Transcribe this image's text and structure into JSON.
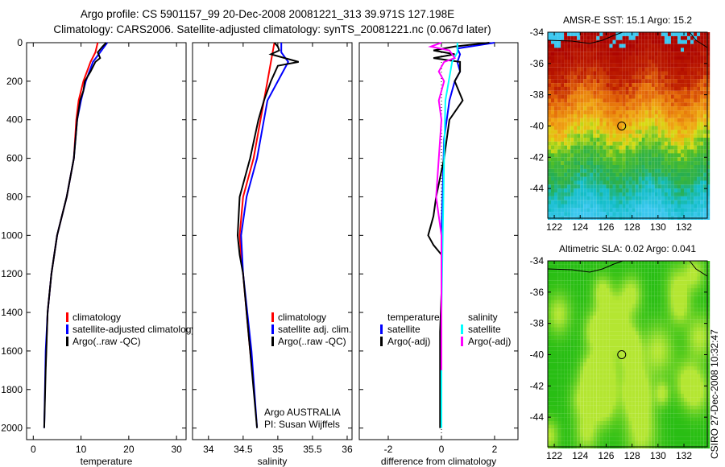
{
  "title": {
    "line1": "Argo profile: CS 5901157_99 20-Dec-2008 20081221_313 39.971S 127.198E",
    "line2": "Climatology: CARS2006. Satellite-adjusted climatology: synTS_20081221.nc (0.067d later)"
  },
  "side_label": "CSIRO 27-Dec-2008 10:32:47",
  "colors": {
    "clim": "#ff0000",
    "sat": "#0000ff",
    "argo": "#000000",
    "sal_sat": "#00ffff",
    "sal_argo": "#ff00ff"
  },
  "chart_data": [
    {
      "type": "line",
      "xlabel": "temperature",
      "ylabel": "",
      "xlim": [
        -1.4,
        32
      ],
      "ylim": [
        0,
        2060
      ],
      "y_reversed": true,
      "xticks": [
        0,
        10,
        20,
        30
      ],
      "yticks": [
        0,
        200,
        400,
        600,
        800,
        1000,
        1200,
        1400,
        1600,
        1800,
        2000
      ],
      "legend": {
        "placement": "center-right",
        "entries": [
          "climatology",
          "satellite-adjusted climatology",
          "Argo(..raw -QC)"
        ]
      },
      "series": [
        {
          "name": "climatology",
          "color": "clim",
          "depth": [
            0,
            50,
            100,
            200,
            300,
            400,
            600,
            800,
            1000,
            1200,
            1400,
            1600,
            1680
          ],
          "values": [
            13.5,
            13,
            12,
            10.5,
            9.5,
            9,
            8.5,
            7,
            5,
            3.8,
            3,
            2.7,
            2.6
          ]
        },
        {
          "name": "satellite-adjusted climatology",
          "color": "sat",
          "depth": [
            0,
            50,
            100,
            200,
            300,
            400,
            600,
            800,
            1000,
            1200,
            1400,
            1600,
            2000
          ],
          "values": [
            15.5,
            14,
            12.5,
            11,
            10,
            9.2,
            8.5,
            7,
            5,
            3.8,
            3,
            2.6,
            2.3
          ]
        },
        {
          "name": "Argo(..raw -QC)",
          "color": "argo",
          "depth": [
            0,
            20,
            50,
            80,
            100,
            150,
            200,
            250,
            300,
            400,
            600,
            800,
            1000,
            1200,
            1400,
            1700,
            2000
          ],
          "values": [
            15.3,
            14.5,
            13.5,
            14,
            13,
            12,
            10.8,
            10.5,
            9.8,
            9.2,
            8.5,
            7,
            5,
            3.8,
            3,
            2.6,
            2.3
          ]
        }
      ]
    },
    {
      "type": "line",
      "xlabel": "salinity",
      "xlim": [
        33.77,
        36.07
      ],
      "ylim": [
        0,
        2060
      ],
      "y_reversed": true,
      "xticks": [
        34,
        34.5,
        35,
        35.5,
        36
      ],
      "yticks": [
        0,
        200,
        400,
        600,
        800,
        1000,
        1200,
        1400,
        1600,
        1800,
        2000
      ],
      "legend": {
        "placement": "center-right",
        "entries": [
          "climatology",
          "satellite adj. clim.",
          "Argo(..raw -QC)"
        ]
      },
      "annotation": [
        "Argo AUSTRALIA",
        "PI: Susan Wijffels"
      ],
      "series": [
        {
          "name": "climatology",
          "color": "clim",
          "depth": [
            0,
            100,
            200,
            300,
            400,
            600,
            800,
            1000,
            1100,
            1200,
            1400,
            1600,
            1700
          ],
          "values": [
            34.95,
            34.9,
            34.85,
            34.8,
            34.75,
            34.65,
            34.5,
            34.45,
            34.47,
            34.5,
            34.55,
            34.6,
            34.63
          ]
        },
        {
          "name": "satellite adj. clim.",
          "color": "sat",
          "depth": [
            0,
            50,
            100,
            200,
            300,
            400,
            600,
            800,
            1000,
            1200,
            1400,
            1600,
            2000
          ],
          "values": [
            35.05,
            35.05,
            35.15,
            35.0,
            34.85,
            34.8,
            34.7,
            34.55,
            34.47,
            34.5,
            34.56,
            34.62,
            34.7
          ]
        },
        {
          "name": "Argo(..raw -QC)",
          "color": "argo",
          "depth": [
            0,
            20,
            40,
            60,
            80,
            100,
            120,
            200,
            300,
            400,
            600,
            800,
            1000,
            1100,
            1200,
            1400,
            1600,
            2000
          ],
          "values": [
            34.95,
            35.0,
            35.02,
            34.9,
            35.1,
            35.3,
            35.0,
            34.9,
            34.8,
            34.72,
            34.6,
            34.45,
            34.42,
            34.45,
            34.5,
            34.55,
            34.6,
            34.7
          ]
        }
      ]
    },
    {
      "type": "line",
      "xlabel": "difference from climatology",
      "xlim": [
        -3.09,
        2.88
      ],
      "ylim": [
        0,
        2060
      ],
      "y_reversed": true,
      "xticks": [
        -2,
        0,
        2
      ],
      "yticks": [
        0,
        200,
        400,
        600,
        800,
        1000,
        1200,
        1400,
        1600,
        1800,
        2000
      ],
      "legend": {
        "placement": "center",
        "headers": [
          "temperature",
          "salinity"
        ],
        "entries": [
          "satellite",
          "Argo(-adj)",
          "satellite",
          "Argo(-adj)"
        ]
      },
      "series": [
        {
          "name": "temperature satellite",
          "color": "sat",
          "depth": [
            0,
            30,
            60,
            100,
            150,
            200,
            300,
            500,
            1000,
            1300
          ],
          "values": [
            2,
            0.6,
            0.7,
            0.6,
            0.7,
            0.5,
            0.3,
            0.1,
            0,
            0
          ]
        },
        {
          "name": "temperature Argo(-adj)",
          "color": "argo",
          "depth": [
            0,
            20,
            40,
            60,
            80,
            100,
            150,
            200,
            300,
            400,
            600,
            800,
            900,
            1000,
            1050,
            1100,
            1300,
            1500,
            1700,
            2000
          ],
          "values": [
            1.8,
            0.5,
            -0.3,
            0.5,
            -0.3,
            0.7,
            0.7,
            0.5,
            0.8,
            0.3,
            0.1,
            -0.2,
            -0.3,
            -0.5,
            -0.3,
            0,
            0,
            -0.05,
            -0.05,
            -0.05
          ]
        },
        {
          "name": "salinity satellite",
          "color": "sal_sat",
          "depth": [
            0,
            50,
            100,
            300,
            600,
            1000,
            1400,
            2000
          ],
          "values": [
            0.6,
            0.6,
            0.4,
            0.15,
            0.1,
            0.05,
            0,
            0
          ]
        },
        {
          "name": "salinity Argo(-adj)",
          "color": "sal_argo",
          "depth": [
            0,
            20,
            40,
            80,
            100,
            150,
            200,
            300,
            400,
            600,
            800,
            1000,
            1200,
            1600,
            1700
          ],
          "values": [
            0,
            -0.4,
            0.3,
            0.5,
            0.1,
            -0.1,
            0.1,
            -0.1,
            0,
            -0.1,
            -0.2,
            0,
            0,
            0,
            0
          ]
        }
      ]
    },
    {
      "type": "heatmap",
      "title": "AMSR-E SST: 15.1 Argo: 15.2",
      "xlim": [
        121.5,
        133.8
      ],
      "ylim": [
        -45.9,
        -34
      ],
      "xticks": [
        122,
        124,
        126,
        128,
        130,
        132
      ],
      "yticks": [
        -34,
        -36,
        -38,
        -40,
        -42,
        -44
      ],
      "marker": {
        "lon": 127.2,
        "lat": -40
      }
    },
    {
      "type": "heatmap",
      "title": "Altimetric SLA: 0.02 Argo: 0.041",
      "xlim": [
        121.5,
        133.8
      ],
      "ylim": [
        -45.9,
        -34
      ],
      "xticks": [
        122,
        124,
        126,
        128,
        130,
        132
      ],
      "yticks": [
        -34,
        -36,
        -38,
        -40,
        -42,
        -44
      ],
      "marker": {
        "lon": 127.2,
        "lat": -40
      }
    }
  ]
}
